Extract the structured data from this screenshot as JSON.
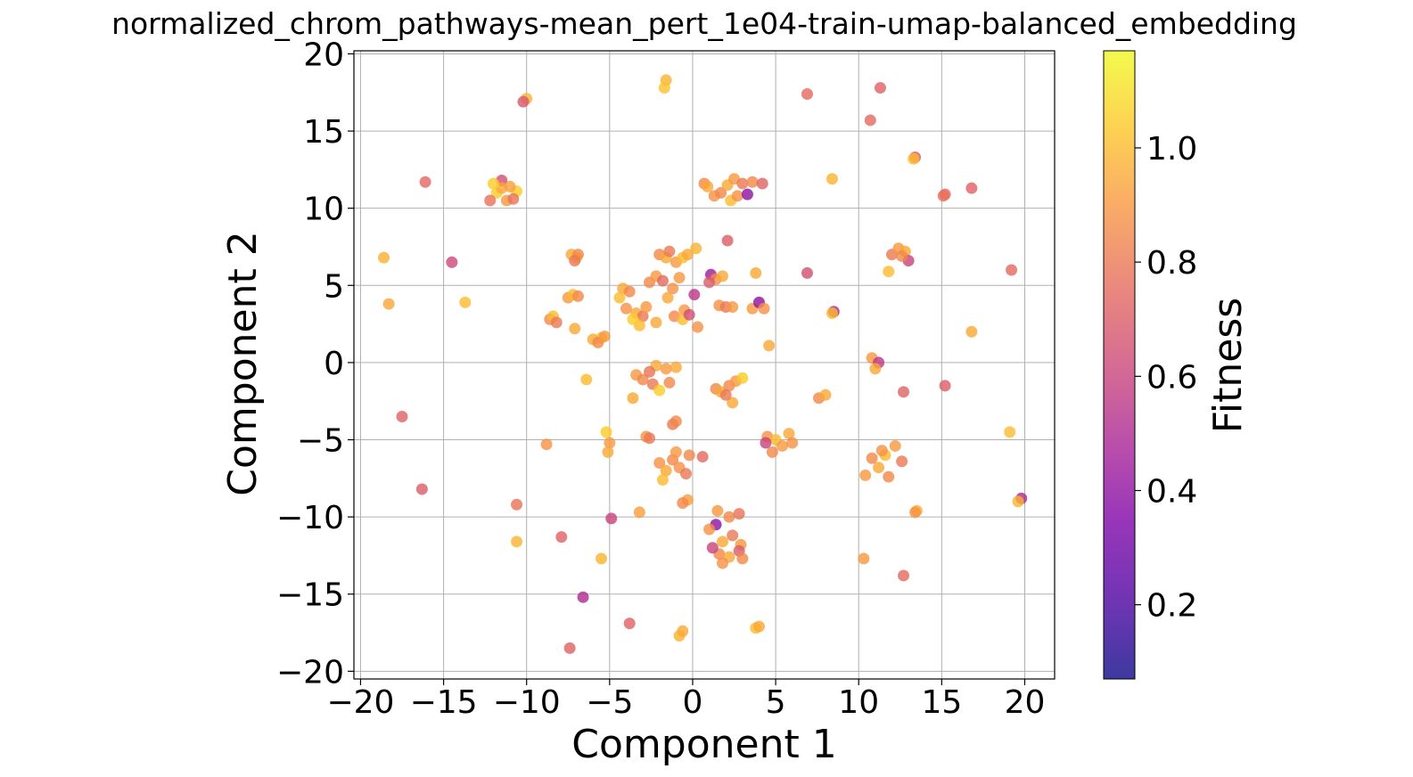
{
  "chart_data": {
    "type": "scatter",
    "title": "normalized_chrom_pathways-mean_pert_1e04-train-umap-balanced_embedding",
    "xlabel": "Component 1",
    "ylabel": "Component 2",
    "xlim": [
      -20.4,
      21.8
    ],
    "ylim": [
      -20.5,
      20.2
    ],
    "xticks": [
      -20,
      -15,
      -10,
      -5,
      0,
      5,
      10,
      15,
      20
    ],
    "yticks": [
      -20,
      -15,
      -10,
      -5,
      0,
      5,
      10,
      15,
      20
    ],
    "xtick_labels": [
      "−20",
      "−15",
      "−10",
      "−5",
      "0",
      "5",
      "10",
      "15",
      "20"
    ],
    "ytick_labels": [
      "−20",
      "−15",
      "−10",
      "−5",
      "0",
      "5",
      "10",
      "15",
      "20"
    ],
    "grid": true,
    "colormap": "plasma",
    "colorbar": {
      "label": "Fitness",
      "range": [
        0.07,
        1.17
      ],
      "ticks": [
        0.2,
        0.4,
        0.6,
        0.8,
        1.0
      ],
      "tick_labels": [
        "0.2",
        "0.4",
        "0.6",
        "0.8",
        "1.0"
      ]
    },
    "points": [
      [
        -18.6,
        6.8,
        0.97
      ],
      [
        -18.3,
        3.8,
        0.94
      ],
      [
        -17.5,
        -3.5,
        0.72
      ],
      [
        -16.3,
        -8.2,
        0.7
      ],
      [
        -16.1,
        11.7,
        0.74
      ],
      [
        -14.5,
        6.5,
        0.62
      ],
      [
        -13.7,
        3.9,
        1.0
      ],
      [
        -10.6,
        -9.2,
        0.78
      ],
      [
        -10.6,
        -11.6,
        0.98
      ],
      [
        -10.0,
        17.1,
        0.98
      ],
      [
        -10.2,
        16.9,
        0.68
      ],
      [
        -11.5,
        11.8,
        0.65
      ],
      [
        -11.8,
        11.0,
        1.05
      ],
      [
        -11.2,
        10.5,
        0.9
      ],
      [
        -10.6,
        11.1,
        1.05
      ],
      [
        -10.8,
        10.6,
        0.78
      ],
      [
        -12.2,
        10.5,
        0.78
      ],
      [
        -11.5,
        11.3,
        0.95
      ],
      [
        -12.0,
        11.6,
        1.05
      ],
      [
        -11.0,
        11.4,
        0.92
      ],
      [
        -8.8,
        -5.3,
        0.88
      ],
      [
        -7.9,
        -11.3,
        0.72
      ],
      [
        -7.4,
        -18.5,
        0.72
      ],
      [
        -6.6,
        -15.2,
        0.5
      ],
      [
        -6.4,
        -1.1,
        1.0
      ],
      [
        -7.3,
        7.0,
        0.95
      ],
      [
        -7.0,
        6.8,
        1.0
      ],
      [
        -6.9,
        7.0,
        0.85
      ],
      [
        -7.1,
        6.6,
        0.8
      ],
      [
        -7.5,
        4.2,
        0.9
      ],
      [
        -7.2,
        4.4,
        1.0
      ],
      [
        -6.9,
        4.3,
        0.85
      ],
      [
        -8.6,
        2.8,
        0.85
      ],
      [
        -8.4,
        3.0,
        1.0
      ],
      [
        -8.2,
        2.6,
        0.8
      ],
      [
        -7.1,
        2.2,
        0.95
      ],
      [
        -6.0,
        1.5,
        0.95
      ],
      [
        -5.5,
        1.6,
        1.0
      ],
      [
        -5.7,
        1.3,
        0.85
      ],
      [
        -5.3,
        1.7,
        0.9
      ],
      [
        -5.2,
        -4.5,
        1.05
      ],
      [
        -5.0,
        -5.2,
        0.9
      ],
      [
        -5.1,
        -5.8,
        0.95
      ],
      [
        -4.9,
        -10.1,
        0.6
      ],
      [
        -5.5,
        -12.7,
        0.98
      ],
      [
        -3.8,
        -16.9,
        0.72
      ],
      [
        -4.2,
        4.8,
        0.95
      ],
      [
        -3.8,
        4.6,
        0.85
      ],
      [
        -4.4,
        4.2,
        1.0
      ],
      [
        -4.0,
        3.5,
        0.88
      ],
      [
        -3.4,
        3.2,
        0.95
      ],
      [
        -3.0,
        3.0,
        0.8
      ],
      [
        -3.2,
        2.4,
        1.0
      ],
      [
        -2.8,
        3.6,
        0.9
      ],
      [
        -2.2,
        2.6,
        0.95
      ],
      [
        -3.6,
        2.8,
        1.05
      ],
      [
        -2.6,
        5.2,
        0.85
      ],
      [
        -2.2,
        5.6,
        0.9
      ],
      [
        -2.0,
        7.0,
        0.85
      ],
      [
        -1.6,
        6.8,
        0.95
      ],
      [
        -1.4,
        7.2,
        0.8
      ],
      [
        -1.0,
        6.5,
        0.9
      ],
      [
        -0.6,
        6.8,
        1.0
      ],
      [
        -0.3,
        7.0,
        0.95
      ],
      [
        -1.8,
        5.3,
        0.75
      ],
      [
        -1.2,
        4.8,
        0.88
      ],
      [
        -0.8,
        5.5,
        0.9
      ],
      [
        -1.5,
        4.2,
        0.95
      ],
      [
        -0.5,
        3.4,
        0.9
      ],
      [
        -1.1,
        3.0,
        0.85
      ],
      [
        -0.6,
        2.8,
        1.0
      ],
      [
        -0.2,
        3.1,
        0.65
      ],
      [
        0.3,
        2.3,
        0.88
      ],
      [
        0.1,
        4.4,
        0.55
      ],
      [
        0.2,
        7.4,
        0.98
      ],
      [
        -1.6,
        18.3,
        0.98
      ],
      [
        -1.7,
        17.8,
        1.02
      ],
      [
        -3.2,
        -9.7,
        0.92
      ],
      [
        -2.8,
        -4.8,
        0.88
      ],
      [
        -2.6,
        -4.9,
        0.8
      ],
      [
        -3.4,
        -0.8,
        0.9
      ],
      [
        -3.0,
        -1.1,
        0.85
      ],
      [
        -3.6,
        -2.3,
        0.95
      ],
      [
        -2.4,
        -1.4,
        0.8
      ],
      [
        -2.0,
        -1.8,
        1.05
      ],
      [
        -1.6,
        -0.4,
        0.9
      ],
      [
        -2.2,
        -0.2,
        0.95
      ],
      [
        -1.4,
        -1.3,
        0.85
      ],
      [
        -1.0,
        -0.3,
        0.95
      ],
      [
        -2.6,
        -0.6,
        0.78
      ],
      [
        -1.2,
        -4.0,
        0.8
      ],
      [
        -1.0,
        -3.8,
        0.85
      ],
      [
        -2.0,
        -6.5,
        0.88
      ],
      [
        -1.6,
        -7.0,
        0.95
      ],
      [
        -1.2,
        -6.3,
        0.85
      ],
      [
        -1.8,
        -7.6,
        1.0
      ],
      [
        -0.8,
        -6.8,
        0.88
      ],
      [
        -0.4,
        -7.2,
        0.8
      ],
      [
        -0.2,
        -6.0,
        0.85
      ],
      [
        0.6,
        -6.1,
        0.75
      ],
      [
        -1.0,
        -5.8,
        0.9
      ],
      [
        -0.3,
        -8.9,
        0.92
      ],
      [
        -0.6,
        -9.1,
        0.85
      ],
      [
        -0.8,
        -17.7,
        0.98
      ],
      [
        -0.6,
        -17.4,
        0.95
      ],
      [
        0.7,
        11.6,
        0.85
      ],
      [
        0.9,
        11.4,
        0.95
      ],
      [
        1.3,
        10.8,
        0.88
      ],
      [
        1.7,
        11.0,
        0.85
      ],
      [
        2.1,
        11.5,
        0.95
      ],
      [
        2.5,
        11.9,
        0.9
      ],
      [
        2.3,
        10.5,
        1.0
      ],
      [
        2.7,
        10.8,
        0.88
      ],
      [
        3.0,
        11.6,
        0.8
      ],
      [
        3.3,
        10.9,
        0.4
      ],
      [
        3.6,
        11.7,
        0.85
      ],
      [
        4.2,
        11.6,
        0.72
      ],
      [
        1.1,
        5.7,
        0.45
      ],
      [
        1.4,
        5.4,
        0.88
      ],
      [
        1.8,
        5.6,
        0.95
      ],
      [
        1.0,
        5.2,
        0.7
      ],
      [
        1.6,
        3.7,
        0.88
      ],
      [
        2.0,
        3.6,
        0.8
      ],
      [
        2.4,
        3.6,
        0.9
      ],
      [
        2.1,
        7.9,
        0.7
      ],
      [
        3.8,
        5.8,
        0.95
      ],
      [
        3.6,
        3.5,
        0.9
      ],
      [
        4.0,
        3.9,
        0.4
      ],
      [
        4.3,
        3.5,
        0.88
      ],
      [
        4.6,
        1.1,
        0.95
      ],
      [
        1.4,
        -1.7,
        0.85
      ],
      [
        1.7,
        -1.9,
        0.95
      ],
      [
        2.2,
        -1.5,
        0.85
      ],
      [
        2.6,
        -1.2,
        0.9
      ],
      [
        3.0,
        -1.0,
        1.05
      ],
      [
        2.4,
        -2.6,
        0.95
      ],
      [
        2.0,
        -2.1,
        0.8
      ],
      [
        4.5,
        -4.8,
        0.88
      ],
      [
        5.0,
        -5.0,
        1.0
      ],
      [
        5.4,
        -5.4,
        0.9
      ],
      [
        5.8,
        -4.6,
        0.95
      ],
      [
        4.8,
        -5.8,
        0.85
      ],
      [
        6.0,
        -5.2,
        0.88
      ],
      [
        4.4,
        -5.2,
        0.6
      ],
      [
        1.5,
        -9.6,
        0.9
      ],
      [
        2.2,
        -10.0,
        0.85
      ],
      [
        2.8,
        -9.8,
        0.78
      ],
      [
        1.4,
        -10.5,
        0.4
      ],
      [
        1.0,
        -10.8,
        0.88
      ],
      [
        1.8,
        -11.6,
        0.95
      ],
      [
        2.4,
        -11.2,
        0.8
      ],
      [
        2.9,
        -11.8,
        0.9
      ],
      [
        1.6,
        -12.4,
        0.85
      ],
      [
        2.2,
        -12.6,
        0.95
      ],
      [
        2.8,
        -12.2,
        0.7
      ],
      [
        1.8,
        -13.0,
        0.88
      ],
      [
        3.0,
        -12.7,
        0.85
      ],
      [
        1.2,
        -12.0,
        0.6
      ],
      [
        3.8,
        -17.2,
        1.0
      ],
      [
        4.0,
        -17.1,
        0.95
      ],
      [
        6.9,
        17.4,
        0.75
      ],
      [
        6.9,
        5.8,
        0.65
      ],
      [
        8.4,
        11.9,
        0.98
      ],
      [
        8.5,
        3.3,
        0.5
      ],
      [
        8.4,
        3.2,
        1.0
      ],
      [
        7.6,
        -2.3,
        0.85
      ],
      [
        8.0,
        -2.1,
        0.95
      ],
      [
        10.3,
        -12.7,
        0.9
      ],
      [
        10.7,
        15.7,
        0.75
      ],
      [
        11.3,
        17.8,
        0.72
      ],
      [
        11.8,
        5.9,
        1.0
      ],
      [
        12.0,
        7.0,
        0.8
      ],
      [
        12.4,
        7.4,
        0.9
      ],
      [
        12.8,
        7.2,
        0.95
      ],
      [
        13.0,
        6.6,
        0.6
      ],
      [
        12.6,
        6.9,
        0.85
      ],
      [
        13.4,
        13.3,
        0.7
      ],
      [
        13.3,
        13.2,
        1.0
      ],
      [
        10.8,
        0.3,
        0.9
      ],
      [
        11.2,
        0.0,
        0.55
      ],
      [
        11.0,
        -0.4,
        0.95
      ],
      [
        12.7,
        -1.9,
        0.72
      ],
      [
        10.4,
        -7.3,
        0.9
      ],
      [
        10.8,
        -6.2,
        0.85
      ],
      [
        11.2,
        -6.8,
        0.95
      ],
      [
        11.6,
        -6.0,
        1.0
      ],
      [
        11.8,
        -7.4,
        0.85
      ],
      [
        12.2,
        -5.4,
        0.9
      ],
      [
        12.6,
        -6.4,
        0.8
      ],
      [
        11.4,
        -5.7,
        0.88
      ],
      [
        13.5,
        -9.6,
        0.98
      ],
      [
        13.4,
        -9.7,
        0.88
      ],
      [
        12.7,
        -13.8,
        0.75
      ],
      [
        15.2,
        -1.5,
        0.7
      ],
      [
        15.2,
        10.9,
        0.72
      ],
      [
        15.1,
        10.8,
        0.78
      ],
      [
        16.8,
        11.3,
        0.72
      ],
      [
        16.8,
        2.0,
        0.95
      ],
      [
        19.2,
        6.0,
        0.75
      ],
      [
        19.1,
        -4.5,
        1.0
      ],
      [
        19.8,
        -8.8,
        0.5
      ],
      [
        19.6,
        -9.0,
        0.98
      ]
    ]
  }
}
